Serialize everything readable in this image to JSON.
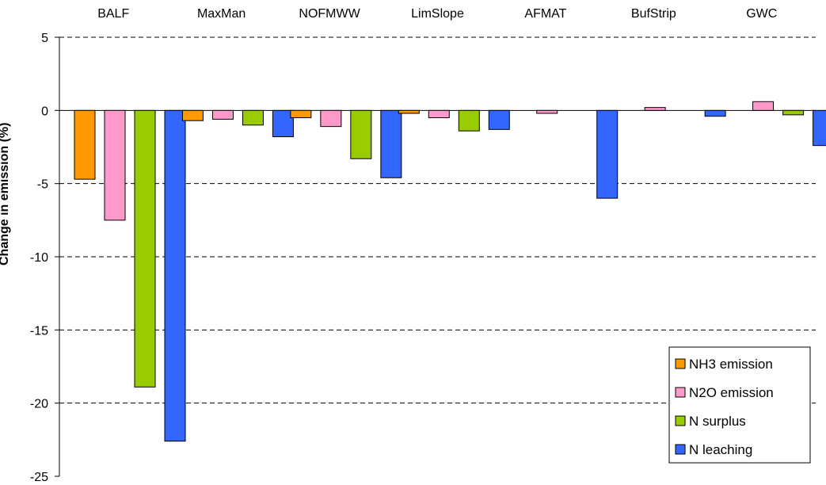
{
  "chart_data": {
    "type": "bar",
    "categories": [
      "BALF",
      "MaxMan",
      "NOFMWW",
      "LimSlope",
      "AFMAT",
      "BufStrip",
      "GWC"
    ],
    "series": [
      {
        "name": "NH3 emission",
        "color": "#FF9900",
        "values": [
          -4.7,
          -0.7,
          -0.5,
          -0.2,
          0,
          0,
          0
        ]
      },
      {
        "name": "N2O emission",
        "color": "#FF99CC",
        "values": [
          -7.5,
          -0.6,
          -1.1,
          -0.5,
          -0.2,
          0.2,
          0.6
        ]
      },
      {
        "name": "N surplus",
        "color": "#99CC00",
        "values": [
          -18.9,
          -1.0,
          -3.3,
          -1.4,
          0,
          0,
          -0.3
        ]
      },
      {
        "name": "N leaching",
        "color": "#3366FF",
        "values": [
          -22.6,
          -1.8,
          -4.6,
          -1.3,
          -6.0,
          -0.4,
          -2.4
        ]
      }
    ],
    "ylabel": "Change in emission (%)",
    "xlabel": "",
    "ylim": [
      -25,
      5
    ],
    "yticks": [
      5,
      0,
      -5,
      -10,
      -15,
      -20,
      -25
    ],
    "grid": "dashed horizontal",
    "legend": "bottom-right",
    "category_axis_position": "top"
  }
}
